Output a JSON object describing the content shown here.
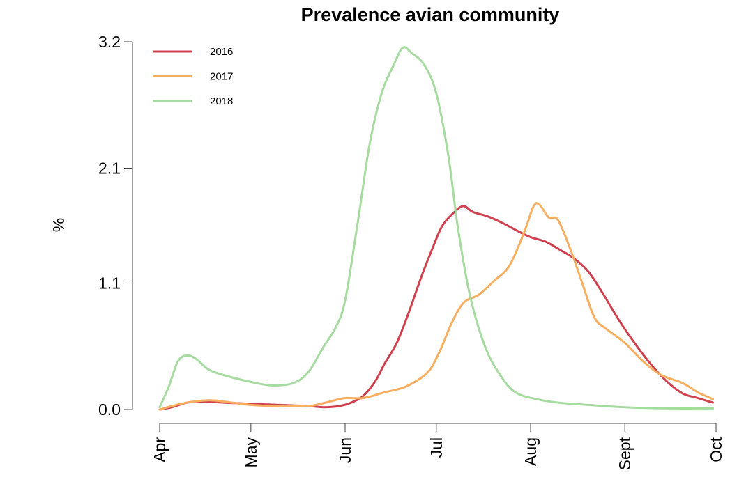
{
  "chart_data": {
    "type": "line",
    "title": "Prevalence avian community",
    "xlabel": "",
    "ylabel": "%",
    "ylim": [
      0.0,
      3.2
    ],
    "y_ticks": [
      0.0,
      1.1,
      2.1,
      3.2
    ],
    "y_tick_labels": [
      "0.0",
      "1.1",
      "2.1",
      "3.2"
    ],
    "x_domain": [
      "2018-04-01",
      "2018-10-01"
    ],
    "x_ticks": [
      {
        "date": "2018-04-01",
        "label": "Apr"
      },
      {
        "date": "2018-05-01",
        "label": "May"
      },
      {
        "date": "2018-06-01",
        "label": "Jun"
      },
      {
        "date": "2018-07-01",
        "label": "Jul"
      },
      {
        "date": "2018-08-01",
        "label": "Aug"
      },
      {
        "date": "2018-09-01",
        "label": "Sept"
      },
      {
        "date": "2018-10-01",
        "label": "Oct"
      }
    ],
    "grid": false,
    "legend_position": "top-left",
    "series": [
      {
        "name": "2016",
        "color": "#d03f4c",
        "points": [
          [
            "2018-04-01",
            0.0
          ],
          [
            "2018-04-05",
            0.02
          ],
          [
            "2018-04-10",
            0.06
          ],
          [
            "2018-04-15",
            0.07
          ],
          [
            "2018-04-22",
            0.06
          ],
          [
            "2018-05-01",
            0.05
          ],
          [
            "2018-05-10",
            0.04
          ],
          [
            "2018-05-20",
            0.03
          ],
          [
            "2018-05-25",
            0.02
          ],
          [
            "2018-05-30",
            0.03
          ],
          [
            "2018-06-03",
            0.06
          ],
          [
            "2018-06-07",
            0.12
          ],
          [
            "2018-06-11",
            0.25
          ],
          [
            "2018-06-14",
            0.4
          ],
          [
            "2018-06-18",
            0.58
          ],
          [
            "2018-06-22",
            0.85
          ],
          [
            "2018-06-26",
            1.15
          ],
          [
            "2018-06-30",
            1.42
          ],
          [
            "2018-07-03",
            1.6
          ],
          [
            "2018-07-07",
            1.72
          ],
          [
            "2018-07-10",
            1.77
          ],
          [
            "2018-07-13",
            1.72
          ],
          [
            "2018-07-18",
            1.68
          ],
          [
            "2018-07-23",
            1.62
          ],
          [
            "2018-07-28",
            1.55
          ],
          [
            "2018-08-01",
            1.5
          ],
          [
            "2018-08-06",
            1.46
          ],
          [
            "2018-08-10",
            1.4
          ],
          [
            "2018-08-15",
            1.32
          ],
          [
            "2018-08-20",
            1.2
          ],
          [
            "2018-08-25",
            1.0
          ],
          [
            "2018-08-30",
            0.78
          ],
          [
            "2018-09-05",
            0.55
          ],
          [
            "2018-09-10",
            0.38
          ],
          [
            "2018-09-15",
            0.24
          ],
          [
            "2018-09-20",
            0.14
          ],
          [
            "2018-09-25",
            0.1
          ],
          [
            "2018-09-30",
            0.06
          ]
        ]
      },
      {
        "name": "2017",
        "color": "#f8ae5f",
        "points": [
          [
            "2018-04-01",
            0.0
          ],
          [
            "2018-04-05",
            0.03
          ],
          [
            "2018-04-10",
            0.06
          ],
          [
            "2018-04-17",
            0.08
          ],
          [
            "2018-04-22",
            0.07
          ],
          [
            "2018-05-01",
            0.04
          ],
          [
            "2018-05-10",
            0.03
          ],
          [
            "2018-05-20",
            0.03
          ],
          [
            "2018-05-27",
            0.07
          ],
          [
            "2018-06-01",
            0.1
          ],
          [
            "2018-06-07",
            0.1
          ],
          [
            "2018-06-14",
            0.15
          ],
          [
            "2018-06-21",
            0.2
          ],
          [
            "2018-06-28",
            0.32
          ],
          [
            "2018-07-02",
            0.5
          ],
          [
            "2018-07-06",
            0.75
          ],
          [
            "2018-07-10",
            0.93
          ],
          [
            "2018-07-15",
            1.0
          ],
          [
            "2018-07-20",
            1.12
          ],
          [
            "2018-07-25",
            1.25
          ],
          [
            "2018-07-30",
            1.55
          ],
          [
            "2018-08-02",
            1.77
          ],
          [
            "2018-08-04",
            1.78
          ],
          [
            "2018-08-07",
            1.67
          ],
          [
            "2018-08-10",
            1.65
          ],
          [
            "2018-08-14",
            1.4
          ],
          [
            "2018-08-18",
            1.1
          ],
          [
            "2018-08-22",
            0.8
          ],
          [
            "2018-08-26",
            0.7
          ],
          [
            "2018-09-01",
            0.58
          ],
          [
            "2018-09-07",
            0.42
          ],
          [
            "2018-09-13",
            0.3
          ],
          [
            "2018-09-20",
            0.23
          ],
          [
            "2018-09-25",
            0.15
          ],
          [
            "2018-09-30",
            0.09
          ]
        ]
      },
      {
        "name": "2018",
        "color": "#a6dba0",
        "points": [
          [
            "2018-04-01",
            0.02
          ],
          [
            "2018-04-04",
            0.2
          ],
          [
            "2018-04-07",
            0.42
          ],
          [
            "2018-04-10",
            0.47
          ],
          [
            "2018-04-13",
            0.44
          ],
          [
            "2018-04-17",
            0.35
          ],
          [
            "2018-04-22",
            0.3
          ],
          [
            "2018-05-01",
            0.24
          ],
          [
            "2018-05-08",
            0.21
          ],
          [
            "2018-05-15",
            0.23
          ],
          [
            "2018-05-20",
            0.33
          ],
          [
            "2018-05-25",
            0.55
          ],
          [
            "2018-05-29",
            0.72
          ],
          [
            "2018-06-01",
            0.95
          ],
          [
            "2018-06-05",
            1.6
          ],
          [
            "2018-06-09",
            2.3
          ],
          [
            "2018-06-13",
            2.75
          ],
          [
            "2018-06-17",
            3.0
          ],
          [
            "2018-06-20",
            3.15
          ],
          [
            "2018-06-23",
            3.1
          ],
          [
            "2018-06-27",
            3.0
          ],
          [
            "2018-07-01",
            2.75
          ],
          [
            "2018-07-05",
            2.2
          ],
          [
            "2018-07-08",
            1.6
          ],
          [
            "2018-07-12",
            1.0
          ],
          [
            "2018-07-17",
            0.55
          ],
          [
            "2018-07-22",
            0.3
          ],
          [
            "2018-07-27",
            0.15
          ],
          [
            "2018-08-03",
            0.09
          ],
          [
            "2018-08-10",
            0.06
          ],
          [
            "2018-08-20",
            0.04
          ],
          [
            "2018-09-01",
            0.02
          ],
          [
            "2018-09-15",
            0.01
          ],
          [
            "2018-09-30",
            0.01
          ]
        ]
      }
    ]
  }
}
